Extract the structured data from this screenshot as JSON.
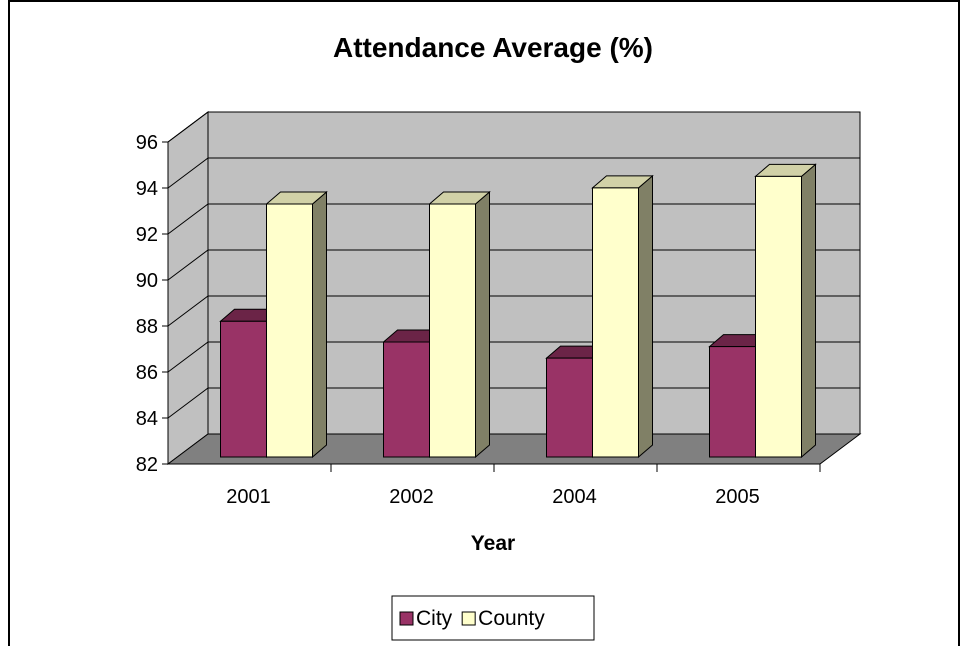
{
  "chart_data": {
    "type": "bar",
    "title": "Attendance Average (%)",
    "xlabel": "Year",
    "ylabel": "",
    "categories": [
      "2001",
      "2002",
      "2004",
      "2005"
    ],
    "ylim": [
      82,
      96
    ],
    "yticks": [
      82,
      84,
      86,
      88,
      90,
      92,
      94,
      96
    ],
    "grid": true,
    "legend": "bottom",
    "style": "3d-column",
    "series": [
      {
        "name": "City",
        "values": [
          87.9,
          87.0,
          86.3,
          86.8
        ],
        "color": "#993366"
      },
      {
        "name": "County",
        "values": [
          93.0,
          93.0,
          93.7,
          94.2
        ],
        "color": "#FFFFCC"
      }
    ],
    "colors": {
      "back_wall": "#C0C0C0",
      "floor": "#808080",
      "side_wall": "#C0C0C0"
    }
  }
}
